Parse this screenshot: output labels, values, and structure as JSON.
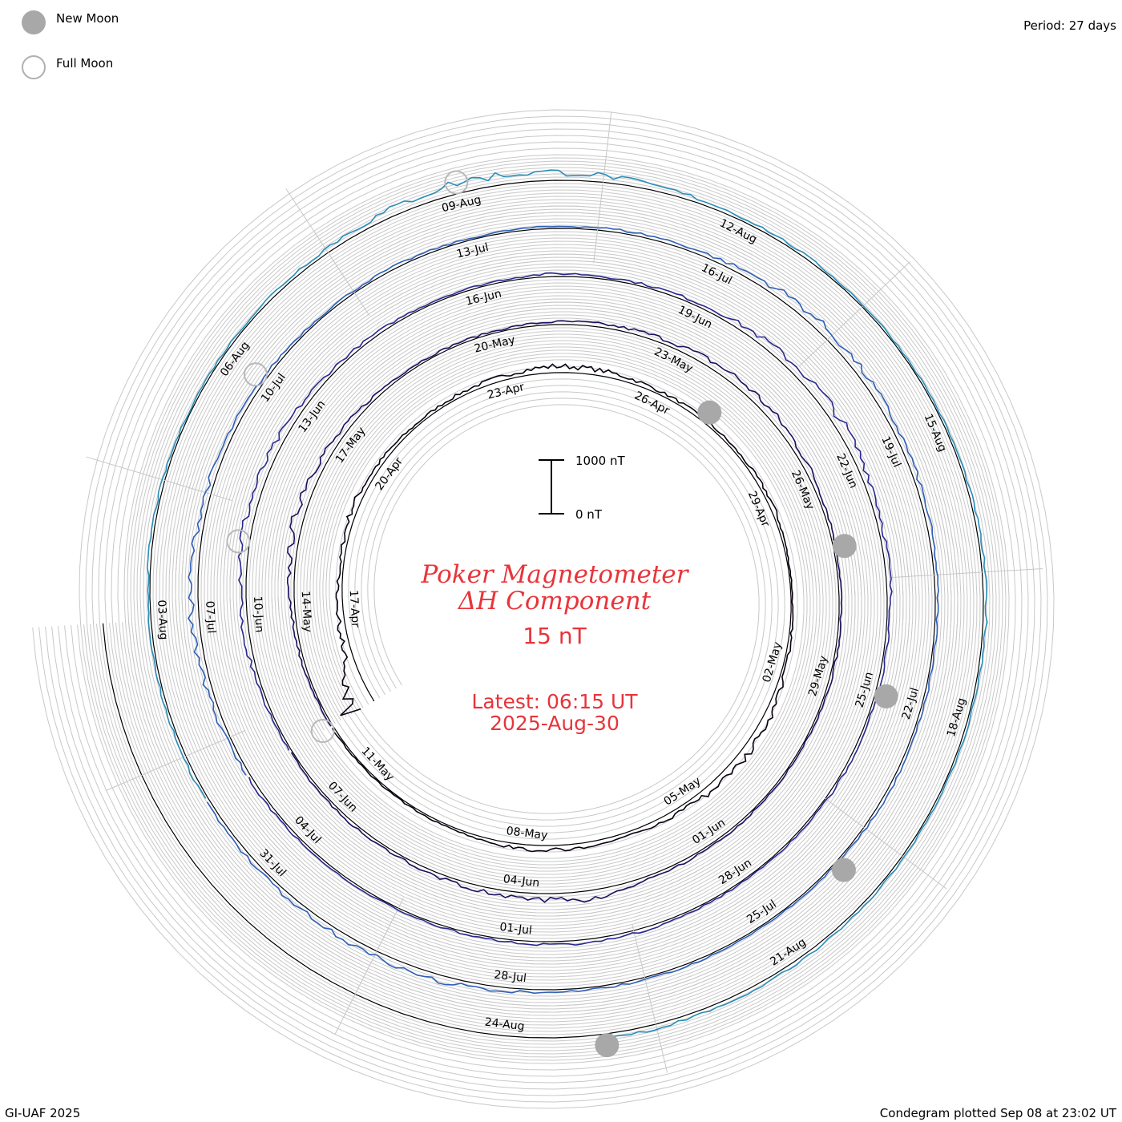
{
  "legend": {
    "new_moon_label": "New Moon",
    "full_moon_label": "Full Moon",
    "period_label": "Period: 27 days"
  },
  "title": {
    "line1": "Poker Magnetometer",
    "line2": "ΔH Component",
    "value": "15 nT",
    "latest_line1": "Latest: 06:15 UT",
    "latest_line2": "2025-Aug-30"
  },
  "scale_bar": {
    "top_label": "1000 nT",
    "bottom_label": "0 nT"
  },
  "footer": {
    "credit": "GI-UAF 2025",
    "plotted": "Condegram plotted Sep 08 at 23:02 UT"
  },
  "chart_data": {
    "type": "line",
    "title": "Poker Magnetometer ΔH Component",
    "subtitle": "15 nT",
    "period_days": 27,
    "start_date": "2025-Apr-15",
    "end_date": "2025-Aug-30",
    "scale_nT": [
      0,
      1000
    ],
    "colors": [
      "#0a0010",
      "#1c1060",
      "#2a2890",
      "#2f5fb8",
      "#2a8eb8",
      "#2fae9c",
      "#40c050",
      "#8cc828",
      "#b8b020",
      "#c08a10",
      "#c04010"
    ],
    "date_labels": [
      "17-Apr",
      "20-Apr",
      "23-Apr",
      "26-Apr",
      "29-Apr",
      "02-May",
      "05-May",
      "08-May",
      "11-May",
      "14-May",
      "17-May",
      "20-May",
      "23-May",
      "26-May",
      "29-May",
      "01-Jun",
      "04-Jun",
      "07-Jun",
      "10-Jun",
      "13-Jun",
      "16-Jun",
      "19-Jun",
      "22-Jun",
      "25-Jun",
      "28-Jun",
      "01-Jul",
      "04-Jul",
      "07-Jul",
      "10-Jul",
      "13-Jul",
      "16-Jul",
      "19-Jul",
      "22-Jul",
      "25-Jul",
      "28-Jul",
      "31-Jul",
      "03-Aug",
      "06-Aug",
      "09-Aug",
      "12-Aug",
      "15-Aug",
      "18-Aug",
      "21-Aug",
      "24-Aug"
    ],
    "new_moon_dates": [
      "2025-Apr-27",
      "2025-May-27",
      "2025-Jun-25",
      "2025-Jul-24",
      "2025-Aug-23"
    ],
    "full_moon_dates": [
      "2025-May-12",
      "2025-Jun-11",
      "2025-Jul-10",
      "2025-Aug-09"
    ],
    "daily_dH_nT": [
      520,
      140,
      90,
      60,
      110,
      70,
      40,
      60,
      80,
      120,
      95,
      60,
      50,
      45,
      70,
      30,
      25,
      60,
      120,
      140,
      95,
      60,
      70,
      85,
      40,
      30,
      25,
      30,
      45,
      60,
      120,
      200,
      90,
      60,
      40,
      35,
      50,
      65,
      95,
      140,
      120,
      80,
      50,
      35,
      40,
      25,
      30,
      40,
      60,
      140,
      110,
      70,
      50,
      45,
      30,
      60,
      110,
      160,
      130,
      90,
      55,
      40,
      35,
      50,
      45,
      60,
      120,
      160,
      140,
      80,
      60,
      40,
      50,
      30,
      25,
      40,
      70,
      45,
      35,
      30,
      40,
      60,
      90,
      140,
      120,
      80,
      55,
      40,
      45,
      30,
      35,
      55,
      70,
      150,
      120,
      90,
      60,
      40,
      45,
      50,
      30,
      25,
      35,
      45,
      60,
      120,
      95,
      70,
      55,
      40,
      35,
      45,
      30,
      35,
      60,
      110,
      200,
      150,
      90,
      60,
      40,
      30,
      30,
      45,
      55,
      35,
      30,
      40,
      55,
      70,
      90
    ]
  }
}
